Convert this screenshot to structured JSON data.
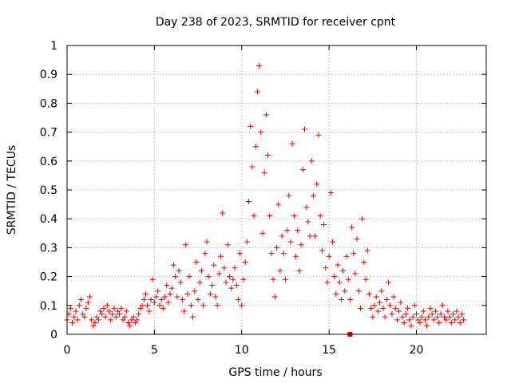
{
  "chart_data": {
    "type": "scatter",
    "title": "Day 238 of 2023, SRMTID for receiver cpnt",
    "xlabel": "GPS time / hours",
    "ylabel": "SRMTID / TECUs",
    "xlim": [
      0,
      24
    ],
    "ylim": [
      0,
      1
    ],
    "x_ticks": [
      0,
      5,
      10,
      15,
      20
    ],
    "x_tick_labels": [
      "0",
      "5",
      "10",
      "15",
      "20"
    ],
    "y_ticks": [
      0,
      0.1,
      0.2,
      0.3,
      0.4,
      0.5,
      0.6,
      0.7,
      0.8,
      0.9,
      1
    ],
    "y_tick_labels": [
      "0",
      "0.1",
      "0.2",
      "0.3",
      "0.4",
      "0.5",
      "0.6",
      "0.7",
      "0.8",
      "0.9",
      "1"
    ],
    "grid": true,
    "marker": "+",
    "color": "#ee0000",
    "series": [
      {
        "name": "SRMTID",
        "points": [
          [
            0.0,
            0.05
          ],
          [
            0.1,
            0.07
          ],
          [
            0.2,
            0.09
          ],
          [
            0.3,
            0.04
          ],
          [
            0.4,
            0.06
          ],
          [
            0.5,
            0.08
          ],
          [
            0.6,
            0.05
          ],
          [
            0.7,
            0.1
          ],
          [
            0.8,
            0.12
          ],
          [
            0.9,
            0.07
          ],
          [
            1.0,
            0.06
          ],
          [
            1.1,
            0.09
          ],
          [
            1.2,
            0.11
          ],
          [
            1.3,
            0.13
          ],
          [
            1.4,
            0.05
          ],
          [
            1.5,
            0.03
          ],
          [
            1.6,
            0.04
          ],
          [
            1.7,
            0.06
          ],
          [
            1.8,
            0.05
          ],
          [
            1.9,
            0.08
          ],
          [
            2.0,
            0.07
          ],
          [
            2.1,
            0.09
          ],
          [
            2.2,
            0.06
          ],
          [
            2.3,
            0.1
          ],
          [
            2.4,
            0.08
          ],
          [
            2.5,
            0.05
          ],
          [
            2.6,
            0.07
          ],
          [
            2.7,
            0.09
          ],
          [
            2.8,
            0.06
          ],
          [
            2.9,
            0.08
          ],
          [
            3.0,
            0.07
          ],
          [
            3.1,
            0.09
          ],
          [
            3.2,
            0.05
          ],
          [
            3.3,
            0.06
          ],
          [
            3.4,
            0.08
          ],
          [
            3.5,
            0.04
          ],
          [
            3.6,
            0.03
          ],
          [
            3.7,
            0.05
          ],
          [
            3.8,
            0.06
          ],
          [
            3.9,
            0.04
          ],
          [
            4.0,
            0.05
          ],
          [
            4.1,
            0.07
          ],
          [
            4.2,
            0.09
          ],
          [
            4.3,
            0.1
          ],
          [
            4.4,
            0.12
          ],
          [
            4.5,
            0.14
          ],
          [
            4.6,
            0.1
          ],
          [
            4.7,
            0.08
          ],
          [
            4.8,
            0.12
          ],
          [
            4.9,
            0.19
          ],
          [
            5.0,
            0.11
          ],
          [
            5.1,
            0.13
          ],
          [
            5.2,
            0.15
          ],
          [
            5.3,
            0.1
          ],
          [
            5.4,
            0.12
          ],
          [
            5.5,
            0.09
          ],
          [
            5.6,
            0.13
          ],
          [
            5.7,
            0.17
          ],
          [
            5.8,
            0.11
          ],
          [
            5.9,
            0.14
          ],
          [
            6.0,
            0.16
          ],
          [
            6.1,
            0.24
          ],
          [
            6.2,
            0.2
          ],
          [
            6.3,
            0.13
          ],
          [
            6.4,
            0.22
          ],
          [
            6.5,
            0.18
          ],
          [
            6.6,
            0.12
          ],
          [
            6.7,
            0.08
          ],
          [
            6.8,
            0.31
          ],
          [
            6.9,
            0.14
          ],
          [
            7.0,
            0.2
          ],
          [
            7.1,
            0.1
          ],
          [
            7.2,
            0.06
          ],
          [
            7.3,
            0.15
          ],
          [
            7.4,
            0.25
          ],
          [
            7.5,
            0.12
          ],
          [
            7.6,
            0.18
          ],
          [
            7.7,
            0.22
          ],
          [
            7.8,
            0.1
          ],
          [
            7.9,
            0.28
          ],
          [
            8.0,
            0.32
          ],
          [
            8.1,
            0.2
          ],
          [
            8.2,
            0.14
          ],
          [
            8.3,
            0.17
          ],
          [
            8.4,
            0.24
          ],
          [
            8.5,
            0.13
          ],
          [
            8.6,
            0.1
          ],
          [
            8.7,
            0.21
          ],
          [
            8.8,
            0.27
          ],
          [
            8.9,
            0.42
          ],
          [
            9.0,
            0.23
          ],
          [
            9.1,
            0.18
          ],
          [
            9.2,
            0.31
          ],
          [
            9.3,
            0.2
          ],
          [
            9.4,
            0.16
          ],
          [
            9.5,
            0.19
          ],
          [
            9.6,
            0.23
          ],
          [
            9.7,
            0.17
          ],
          [
            9.8,
            0.12
          ],
          [
            9.9,
            0.28
          ],
          [
            10.0,
            0.1
          ],
          [
            10.1,
            0.19
          ],
          [
            10.2,
            0.25
          ],
          [
            10.3,
            0.32
          ],
          [
            10.4,
            0.46
          ],
          [
            10.5,
            0.72
          ],
          [
            10.6,
            0.58
          ],
          [
            10.7,
            0.41
          ],
          [
            10.8,
            0.65
          ],
          [
            10.9,
            0.84
          ],
          [
            11.0,
            0.93
          ],
          [
            11.1,
            0.7
          ],
          [
            11.2,
            0.35
          ],
          [
            11.3,
            0.56
          ],
          [
            11.4,
            0.76
          ],
          [
            11.5,
            0.62
          ],
          [
            11.6,
            0.41
          ],
          [
            11.7,
            0.28
          ],
          [
            11.8,
            0.19
          ],
          [
            11.9,
            0.13
          ],
          [
            12.0,
            0.3
          ],
          [
            12.1,
            0.45
          ],
          [
            12.2,
            0.22
          ],
          [
            12.3,
            0.34
          ],
          [
            12.4,
            0.28
          ],
          [
            12.5,
            0.19
          ],
          [
            12.6,
            0.36
          ],
          [
            12.7,
            0.48
          ],
          [
            12.8,
            0.32
          ],
          [
            12.9,
            0.66
          ],
          [
            13.0,
            0.41
          ],
          [
            13.1,
            0.27
          ],
          [
            13.2,
            0.36
          ],
          [
            13.3,
            0.22
          ],
          [
            13.4,
            0.31
          ],
          [
            13.5,
            0.57
          ],
          [
            13.6,
            0.71
          ],
          [
            13.7,
            0.44
          ],
          [
            13.8,
            0.39
          ],
          [
            13.9,
            0.34
          ],
          [
            14.0,
            0.6
          ],
          [
            14.1,
            0.48
          ],
          [
            14.2,
            0.34
          ],
          [
            14.3,
            0.52
          ],
          [
            14.4,
            0.69
          ],
          [
            14.5,
            0.41
          ],
          [
            14.6,
            0.29
          ],
          [
            14.7,
            0.38
          ],
          [
            14.8,
            0.23
          ],
          [
            14.9,
            0.18
          ],
          [
            15.0,
            0.27
          ],
          [
            15.1,
            0.49
          ],
          [
            15.2,
            0.32
          ],
          [
            15.3,
            0.2
          ],
          [
            15.4,
            0.14
          ],
          [
            15.5,
            0.24
          ],
          [
            15.6,
            0.18
          ],
          [
            15.7,
            0.12
          ],
          [
            15.8,
            0.22
          ],
          [
            15.9,
            0.15
          ],
          [
            16.0,
            0.27
          ],
          [
            16.1,
            0.19
          ],
          [
            16.2,
            0.12
          ],
          [
            16.3,
            0.37
          ],
          [
            16.4,
            0.28
          ],
          [
            16.5,
            0.21
          ],
          [
            16.6,
            0.33
          ],
          [
            16.7,
            0.15
          ],
          [
            16.8,
            0.09
          ],
          [
            16.9,
            0.4
          ],
          [
            17.0,
            0.25
          ],
          [
            17.1,
            0.19
          ],
          [
            17.2,
            0.29
          ],
          [
            17.3,
            0.14
          ],
          [
            17.4,
            0.09
          ],
          [
            17.5,
            0.06
          ],
          [
            17.6,
            0.1
          ],
          [
            17.7,
            0.13
          ],
          [
            17.8,
            0.08
          ],
          [
            17.9,
            0.11
          ],
          [
            18.0,
            0.15
          ],
          [
            18.1,
            0.09
          ],
          [
            18.2,
            0.06
          ],
          [
            18.3,
            0.12
          ],
          [
            18.4,
            0.18
          ],
          [
            18.5,
            0.1
          ],
          [
            18.6,
            0.07
          ],
          [
            18.7,
            0.13
          ],
          [
            18.8,
            0.09
          ],
          [
            18.9,
            0.05
          ],
          [
            19.0,
            0.08
          ],
          [
            19.1,
            0.11
          ],
          [
            19.2,
            0.06
          ],
          [
            19.3,
            0.04
          ],
          [
            19.4,
            0.07
          ],
          [
            19.5,
            0.09
          ],
          [
            19.6,
            0.05
          ],
          [
            19.7,
            0.03
          ],
          [
            19.8,
            0.06
          ],
          [
            19.9,
            0.1
          ],
          [
            20.0,
            0.07
          ],
          [
            20.1,
            0.05
          ],
          [
            20.2,
            0.04
          ],
          [
            20.3,
            0.06
          ],
          [
            20.4,
            0.08
          ],
          [
            20.5,
            0.05
          ],
          [
            20.6,
            0.03
          ],
          [
            20.7,
            0.06
          ],
          [
            20.8,
            0.09
          ],
          [
            20.9,
            0.07
          ],
          [
            21.0,
            0.05
          ],
          [
            21.1,
            0.08
          ],
          [
            21.2,
            0.06
          ],
          [
            21.3,
            0.04
          ],
          [
            21.4,
            0.07
          ],
          [
            21.5,
            0.1
          ],
          [
            21.6,
            0.06
          ],
          [
            21.7,
            0.05
          ],
          [
            21.8,
            0.08
          ],
          [
            21.9,
            0.06
          ],
          [
            22.0,
            0.04
          ],
          [
            22.1,
            0.07
          ],
          [
            22.2,
            0.05
          ],
          [
            22.3,
            0.08
          ],
          [
            22.4,
            0.06
          ],
          [
            22.5,
            0.04
          ],
          [
            22.6,
            0.07
          ],
          [
            22.7,
            0.05
          ]
        ]
      }
    ],
    "outlier_marker": {
      "x": 16.2,
      "y": 0.0
    }
  }
}
